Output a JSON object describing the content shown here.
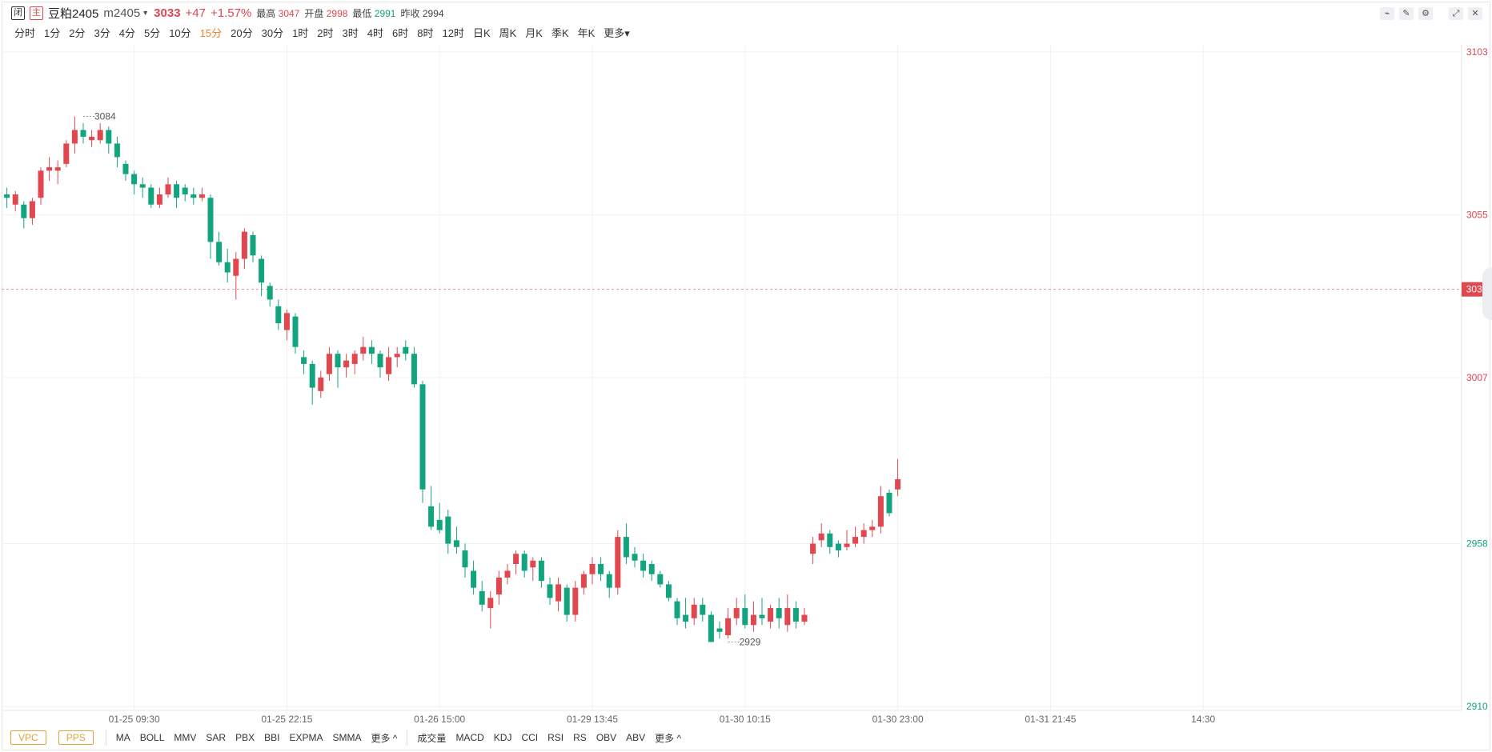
{
  "header": {
    "tag_close": "闭",
    "tag_main": "主",
    "name": "豆粕2405",
    "code": "m2405",
    "price": "3033",
    "change": "+47",
    "change_pct": "+1.57%",
    "stats": [
      {
        "label": "最高",
        "value": "3047",
        "color": "red"
      },
      {
        "label": "开盘",
        "value": "2998",
        "color": "red"
      },
      {
        "label": "最低",
        "value": "2991",
        "color": "green"
      },
      {
        "label": "昨收",
        "value": "2994",
        "color": "dark"
      }
    ],
    "tools": [
      "line-tool-icon",
      "pen-icon",
      "settings-icon",
      "expand-icon",
      "close-icon"
    ]
  },
  "periods": [
    "分时",
    "1分",
    "2分",
    "3分",
    "4分",
    "5分",
    "10分",
    "15分",
    "20分",
    "30分",
    "1时",
    "2时",
    "3时",
    "4时",
    "6时",
    "8时",
    "12时",
    "日K",
    "周K",
    "月K",
    "季K",
    "年K",
    "更多"
  ],
  "active_period": "15分",
  "indicators": {
    "boxes": [
      "VPC",
      "PPS"
    ],
    "main": [
      "MA",
      "BOLL",
      "MMV",
      "SAR",
      "PBX",
      "BBI",
      "EXPMA",
      "SMMA",
      "更多 ^"
    ],
    "sub": [
      "成交量",
      "MACD",
      "KDJ",
      "CCI",
      "RSI",
      "RS",
      "OBV",
      "ABV",
      "更多 ^"
    ]
  },
  "chart_data": {
    "type": "candlestick",
    "colors": {
      "up": "#e0474f",
      "down": "#12a47e",
      "grid": "#f1f2f4",
      "dash": "#f08a8a"
    },
    "ylim": [
      2910,
      3103
    ],
    "y_ticks": [
      3103,
      3055,
      3007,
      2958,
      2910
    ],
    "current_price": "3033",
    "x_ticks": [
      {
        "label": "01-25 09:30",
        "index": 15
      },
      {
        "label": "01-25 22:15",
        "index": 33
      },
      {
        "label": "01-26 15:00",
        "index": 51
      },
      {
        "label": "01-29 13:45",
        "index": 69
      },
      {
        "label": "01-30 10:15",
        "index": 87
      },
      {
        "label": "01-30 23:00",
        "index": 105
      },
      {
        "label": "01-31 21:45",
        "index": 123
      },
      {
        "label": "14:30",
        "index": 141
      }
    ],
    "annotations": [
      {
        "label": "3084",
        "index": 9,
        "value": 3084
      },
      {
        "label": "2929",
        "index": 85,
        "value": 2929
      }
    ],
    "candles": [
      [
        3061,
        3060,
        3063,
        3057
      ],
      [
        3058,
        3061,
        3062,
        3056
      ],
      [
        3058,
        3054,
        3059,
        3051
      ],
      [
        3054,
        3059,
        3060,
        3052
      ],
      [
        3060,
        3068,
        3069,
        3058
      ],
      [
        3068,
        3069,
        3072,
        3065
      ],
      [
        3068,
        3069,
        3071,
        3064
      ],
      [
        3070,
        3076,
        3077,
        3069
      ],
      [
        3076,
        3080,
        3084,
        3073
      ],
      [
        3080,
        3078,
        3082,
        3076
      ],
      [
        3077,
        3078,
        3080,
        3075
      ],
      [
        3077,
        3080,
        3082,
        3076
      ],
      [
        3080,
        3076,
        3081,
        3073
      ],
      [
        3076,
        3072,
        3078,
        3069
      ],
      [
        3070,
        3067,
        3071,
        3065
      ],
      [
        3067,
        3064,
        3068,
        3061
      ],
      [
        3064,
        3063,
        3066,
        3060
      ],
      [
        3063,
        3058,
        3064,
        3057
      ],
      [
        3058,
        3061,
        3063,
        3057
      ],
      [
        3061,
        3064,
        3066,
        3060
      ],
      [
        3064,
        3060,
        3065,
        3057
      ],
      [
        3063,
        3061,
        3064,
        3059
      ],
      [
        3061,
        3060,
        3063,
        3058
      ],
      [
        3060,
        3061,
        3063,
        3059
      ],
      [
        3060,
        3047,
        3061,
        3042
      ],
      [
        3047,
        3041,
        3050,
        3040
      ],
      [
        3041,
        3038,
        3045,
        3035
      ],
      [
        3037,
        3042,
        3044,
        3030
      ],
      [
        3042,
        3050,
        3051,
        3039
      ],
      [
        3049,
        3043,
        3050,
        3041
      ],
      [
        3042,
        3035,
        3043,
        3031
      ],
      [
        3034,
        3030,
        3035,
        3028
      ],
      [
        3028,
        3023,
        3030,
        3021
      ],
      [
        3021,
        3026,
        3027,
        3018
      ],
      [
        3025,
        3016,
        3026,
        3014
      ],
      [
        3013,
        3011,
        3015,
        3008
      ],
      [
        3011,
        3004,
        3012,
        2999
      ],
      [
        3003,
        3007,
        3009,
        3001
      ],
      [
        3008,
        3014,
        3016,
        3006
      ],
      [
        3014,
        3010,
        3015,
        3004
      ],
      [
        3010,
        3012,
        3014,
        3007
      ],
      [
        3011,
        3014,
        3015,
        3008
      ],
      [
        3014,
        3016,
        3019,
        3012
      ],
      [
        3016,
        3014,
        3018,
        3011
      ],
      [
        3014,
        3010,
        3015,
        3007
      ],
      [
        3008,
        3013,
        3016,
        3006
      ],
      [
        3013,
        3014,
        3016,
        3010
      ],
      [
        3016,
        3014,
        3018,
        3012
      ],
      [
        3014,
        3005,
        3016,
        3004
      ],
      [
        3005,
        2974,
        3006,
        2970
      ],
      [
        2969,
        2963,
        2975,
        2962
      ],
      [
        2965,
        2962,
        2970,
        2961
      ],
      [
        2966,
        2958,
        2968,
        2955
      ],
      [
        2959,
        2957,
        2963,
        2955
      ],
      [
        2956,
        2951,
        2958,
        2948
      ],
      [
        2950,
        2945,
        2953,
        2943
      ],
      [
        2944,
        2940,
        2947,
        2938
      ],
      [
        2939,
        2942,
        2944,
        2933
      ],
      [
        2943,
        2948,
        2950,
        2940
      ],
      [
        2948,
        2950,
        2952,
        2946
      ],
      [
        2952,
        2955,
        2956,
        2949
      ],
      [
        2955,
        2950,
        2956,
        2948
      ],
      [
        2951,
        2953,
        2954,
        2947
      ],
      [
        2953,
        2947,
        2954,
        2945
      ],
      [
        2946,
        2942,
        2948,
        2940
      ],
      [
        2941,
        2946,
        2948,
        2938
      ],
      [
        2945,
        2937,
        2946,
        2935
      ],
      [
        2937,
        2945,
        2947,
        2935
      ],
      [
        2945,
        2949,
        2950,
        2943
      ],
      [
        2949,
        2952,
        2954,
        2946
      ],
      [
        2952,
        2949,
        2954,
        2947
      ],
      [
        2949,
        2945,
        2950,
        2942
      ],
      [
        2945,
        2960,
        2962,
        2943
      ],
      [
        2960,
        2954,
        2964,
        2952
      ],
      [
        2955,
        2953,
        2957,
        2951
      ],
      [
        2953,
        2950,
        2955,
        2948
      ],
      [
        2952,
        2949,
        2953,
        2947
      ],
      [
        2949,
        2946,
        2950,
        2945
      ],
      [
        2946,
        2942,
        2947,
        2941
      ],
      [
        2941,
        2936,
        2942,
        2934
      ],
      [
        2937,
        2935,
        2942,
        2933
      ],
      [
        2936,
        2940,
        2942,
        2934
      ],
      [
        2940,
        2937,
        2942,
        2935
      ],
      [
        2937,
        2929,
        2938,
        2929
      ],
      [
        2933,
        2932,
        2935,
        2930
      ],
      [
        2931,
        2936,
        2939,
        2930
      ],
      [
        2936,
        2939,
        2942,
        2934
      ],
      [
        2939,
        2934,
        2943,
        2933
      ],
      [
        2934,
        2937,
        2941,
        2932
      ],
      [
        2937,
        2936,
        2942,
        2934
      ],
      [
        2935,
        2939,
        2940,
        2933
      ],
      [
        2939,
        2936,
        2942,
        2933
      ],
      [
        2934,
        2939,
        2943,
        2932
      ],
      [
        2939,
        2935,
        2941,
        2933
      ],
      [
        2935,
        2937,
        2939,
        2934
      ],
      [
        2955,
        2958,
        2960,
        2952
      ],
      [
        2959,
        2961,
        2964,
        2957
      ],
      [
        2961,
        2957,
        2962,
        2955
      ],
      [
        2958,
        2956,
        2959,
        2954
      ],
      [
        2957,
        2958,
        2962,
        2956
      ],
      [
        2958,
        2960,
        2963,
        2957
      ],
      [
        2960,
        2962,
        2964,
        2958
      ],
      [
        2962,
        2963,
        2965,
        2960
      ],
      [
        2963,
        2972,
        2975,
        2961
      ],
      [
        2973,
        2967,
        2974,
        2966
      ],
      [
        2974,
        2977,
        2983,
        2972
      ]
    ]
  }
}
